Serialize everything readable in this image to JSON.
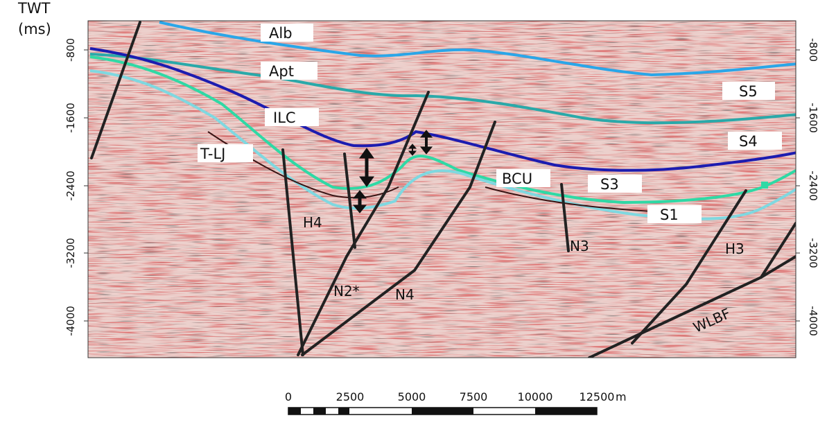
{
  "axis": {
    "title_line1": "TWT",
    "title_line2": "(ms)",
    "left_ticks": [
      "-800",
      "-1600",
      "-2400",
      "-3200",
      "-4000"
    ],
    "right_ticks": [
      "-800",
      "-1600",
      "-2400",
      "-3200",
      "-4000"
    ]
  },
  "horizons": [
    {
      "name": "Alb",
      "color": "#2aa6e8"
    },
    {
      "name": "Apt",
      "color": "#2aa9a9"
    },
    {
      "name": "ILC",
      "color": "#1c1cb0"
    },
    {
      "name": "BCU",
      "color": "#2fd9a5"
    },
    {
      "name": "T-LJ",
      "color": "#7fd8e0"
    }
  ],
  "sequences": [
    "S5",
    "S4",
    "S3",
    "S1"
  ],
  "faults": [
    "H4",
    "N2*",
    "N4",
    "N3",
    "H3",
    "WLBF"
  ],
  "scalebar": {
    "ticks": [
      "0",
      "2500",
      "5000",
      "7500",
      "10000",
      "12500"
    ],
    "unit": "m"
  },
  "colors": {
    "seismic_background": "#e9c4c0",
    "fault_line": "#222222"
  }
}
